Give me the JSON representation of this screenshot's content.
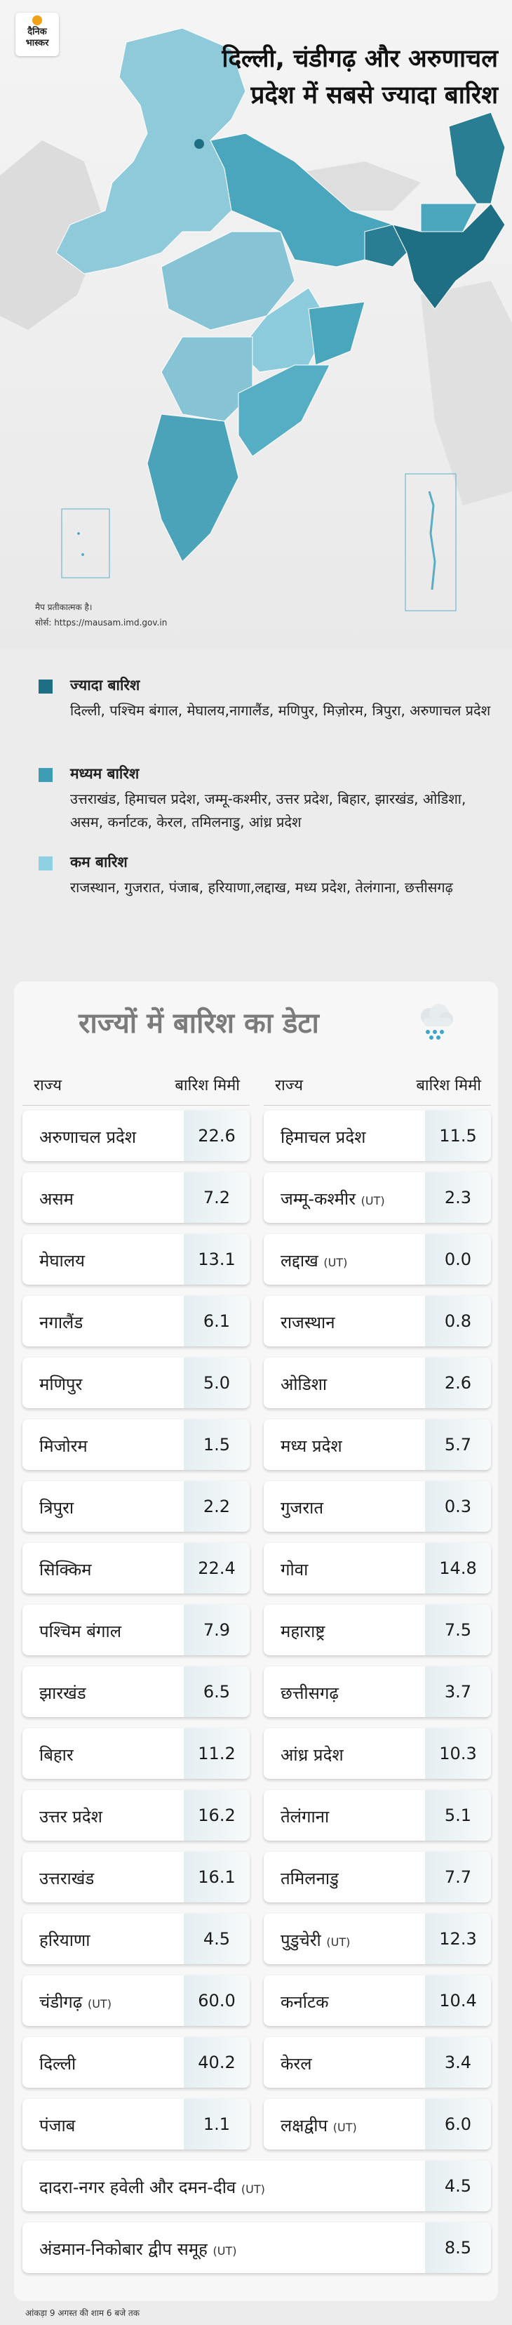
{
  "brand": {
    "line1": "दैनिक",
    "line2": "भास्कर"
  },
  "headline": "दिल्ली, चंडीगढ़ और अरुणाचल प्रदेश में सबसे ज्यादा बारिश",
  "map_notes": {
    "line1": "मैप प्रतीकात्मक है।",
    "line2": "सोर्स: https://mausam.imd.gov.in"
  },
  "colors": {
    "heavy": "#1f6f84",
    "moderate": "#3d9db5",
    "low": "#8fd0e2"
  },
  "legend": [
    {
      "title": "ज्यादा बारिश",
      "states": "दिल्ली, पश्चिम बंगाल, मेघालय,नागालैंड, मणिपुर, मिज़ोरम, त्रिपुरा, अरुणाचल प्रदेश",
      "color": "#1f6f84"
    },
    {
      "title": "मध्यम बारिश",
      "states": "उत्तराखंड, हिमाचल प्रदेश, जम्मू-कश्मीर, उत्तर प्रदेश, बिहार, झारखंड, ओडिशा, असम, कर्नाटक, केरल, तमिलनाडु, आंध्र प्रदेश",
      "color": "#3d9db5"
    },
    {
      "title": "कम बारिश",
      "states": "राजस्थान, गुजरात, पंजाब, हरियाणा,लद्दाख, मध्य प्रदेश, तेलंगाना, छत्तीसगढ़",
      "color": "#8fd0e2"
    }
  ],
  "table": {
    "title": "राज्यों में बारिश का डेटा",
    "icon": "rain-cloud-icon",
    "headers": {
      "state": "राज्य",
      "rain": "बारिश मिमी"
    },
    "left": [
      {
        "state": "अरुणाचल प्रदेश",
        "ut": "",
        "value": "22.6"
      },
      {
        "state": "असम",
        "ut": "",
        "value": "7.2"
      },
      {
        "state": "मेघालय",
        "ut": "",
        "value": "13.1"
      },
      {
        "state": "नगालैंड",
        "ut": "",
        "value": "6.1"
      },
      {
        "state": "मणिपुर",
        "ut": "",
        "value": "5.0"
      },
      {
        "state": "मिजोरम",
        "ut": "",
        "value": "1.5"
      },
      {
        "state": "त्रिपुरा",
        "ut": "",
        "value": "2.2"
      },
      {
        "state": "सिक्किम",
        "ut": "",
        "value": "22.4"
      },
      {
        "state": "पश्चिम बंगाल",
        "ut": "",
        "value": "7.9"
      },
      {
        "state": "झारखंड",
        "ut": "",
        "value": "6.5"
      },
      {
        "state": "बिहार",
        "ut": "",
        "value": "11.2"
      },
      {
        "state": "उत्तर प्रदेश",
        "ut": "",
        "value": "16.2"
      },
      {
        "state": "उत्तराखंड",
        "ut": "",
        "value": "16.1"
      },
      {
        "state": "हरियाणा",
        "ut": "",
        "value": "4.5"
      },
      {
        "state": "चंडीगढ़",
        "ut": "(UT)",
        "value": "60.0"
      },
      {
        "state": "दिल्ली",
        "ut": "",
        "value": "40.2"
      },
      {
        "state": "पंजाब",
        "ut": "",
        "value": "1.1"
      }
    ],
    "right": [
      {
        "state": "हिमाचल प्रदेश",
        "ut": "",
        "value": "11.5"
      },
      {
        "state": "जम्मू-कश्मीर",
        "ut": "(UT)",
        "value": "2.3"
      },
      {
        "state": "लद्दाख",
        "ut": "(UT)",
        "value": "0.0"
      },
      {
        "state": "राजस्थान",
        "ut": "",
        "value": "0.8"
      },
      {
        "state": "ओडिशा",
        "ut": "",
        "value": "2.6"
      },
      {
        "state": "मध्य प्रदेश",
        "ut": "",
        "value": "5.7"
      },
      {
        "state": "गुजरात",
        "ut": "",
        "value": "0.3"
      },
      {
        "state": "गोवा",
        "ut": "",
        "value": "14.8"
      },
      {
        "state": "महाराष्ट्र",
        "ut": "",
        "value": "7.5"
      },
      {
        "state": "छत्तीसगढ़",
        "ut": "",
        "value": "3.7"
      },
      {
        "state": "आंध्र प्रदेश",
        "ut": "",
        "value": "10.3"
      },
      {
        "state": "तेलंगाना",
        "ut": "",
        "value": "5.1"
      },
      {
        "state": "तमिलनाडु",
        "ut": "",
        "value": "7.7"
      },
      {
        "state": "पुडुचेरी",
        "ut": "(UT)",
        "value": "12.3"
      },
      {
        "state": "कर्नाटक",
        "ut": "",
        "value": "10.4"
      },
      {
        "state": "केरल",
        "ut": "",
        "value": "3.4"
      },
      {
        "state": "लक्षद्वीप",
        "ut": "(UT)",
        "value": "6.0"
      }
    ],
    "full": [
      {
        "state": "दादरा-नगर हवेली और दमन-दीव",
        "ut": "(UT)",
        "value": "4.5"
      },
      {
        "state": "अंडमान-निकोबार द्वीप समूह",
        "ut": "(UT)",
        "value": "8.5"
      }
    ]
  },
  "footer": "आंकड़ा 9 अगस्त की शाम 6 बजे तक"
}
